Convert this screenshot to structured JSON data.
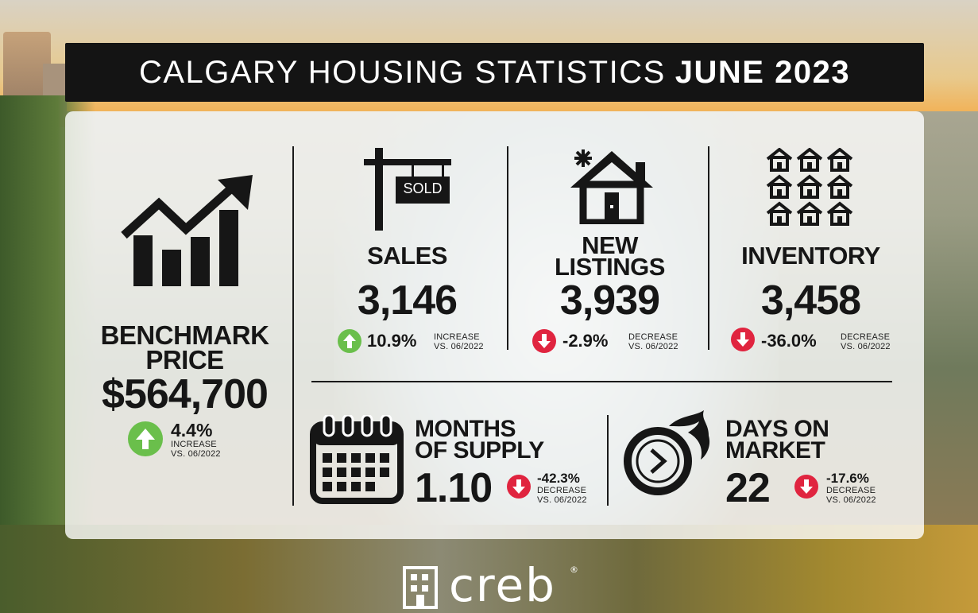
{
  "title": {
    "prefix": "CALGARY HOUSING STATISTICS",
    "period": "JUNE 2023"
  },
  "colors": {
    "increase": "#6abf4b",
    "decrease": "#e0243f",
    "title_bar": "#141414"
  },
  "benchmark": {
    "label_line1": "BENCHMARK",
    "label_line2": "PRICE",
    "value": "$564,700",
    "change": "4.4%",
    "note_line1": "INCREASE",
    "note_line2": "VS. 06/2022",
    "direction": "up",
    "icon": "rising-chart-icon"
  },
  "sales": {
    "label": "SALES",
    "value": "3,146",
    "change": "10.9%",
    "note_line1": "INCREASE",
    "note_line2": "VS. 06/2022",
    "direction": "up",
    "icon": "sold-sign-icon",
    "sign_text": "SOLD"
  },
  "new_listings": {
    "label_line1": "NEW",
    "label_line2": "LISTINGS",
    "value": "3,939",
    "change": "-2.9%",
    "note_line1": "DECREASE",
    "note_line2": "VS. 06/2022",
    "direction": "down",
    "icon": "new-house-icon"
  },
  "inventory": {
    "label": "INVENTORY",
    "value": "3,458",
    "change": "-36.0%",
    "note_line1": "DECREASE",
    "note_line2": "VS. 06/2022",
    "direction": "down",
    "icon": "houses-grid-icon"
  },
  "months_supply": {
    "label_line1": "MONTHS",
    "label_line2": "OF SUPPLY",
    "value": "1.10",
    "change": "-42.3%",
    "note_line1": "DECREASE",
    "note_line2": "VS. 06/2022",
    "direction": "down",
    "icon": "calendar-icon"
  },
  "days_on_market": {
    "label_line1": "DAYS ON",
    "label_line2": "MARKET",
    "value": "22",
    "change": "-17.6%",
    "note_line1": "DECREASE",
    "note_line2": "VS. 06/2022",
    "direction": "down",
    "icon": "fast-clock-icon"
  },
  "logo": {
    "text": "creb",
    "mark": "®",
    "icon": "creb-building-icon"
  }
}
